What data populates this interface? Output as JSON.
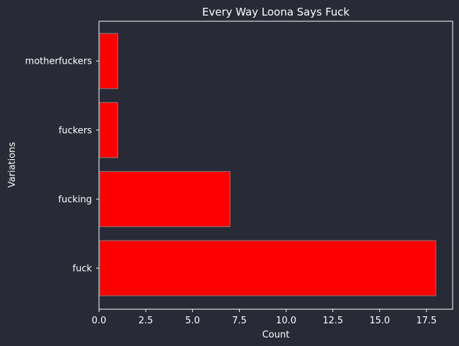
{
  "chart_data": {
    "type": "bar",
    "orientation": "horizontal",
    "title": "Every Way Loona Says Fuck",
    "xlabel": "Count",
    "ylabel": "Variations",
    "categories": [
      "fuck",
      "fucking",
      "fuckers",
      "motherfuckers"
    ],
    "values": [
      18,
      7,
      1,
      1
    ],
    "xlim": [
      0,
      18.9
    ],
    "xticks": [
      "0.0",
      "2.5",
      "5.0",
      "7.5",
      "10.0",
      "12.5",
      "15.0",
      "17.5"
    ],
    "grid": false,
    "bar_color": "#ff0000",
    "bar_edge_color": "#7f7f7f",
    "background_color": "#282a36",
    "text_color": "#ffffff"
  }
}
